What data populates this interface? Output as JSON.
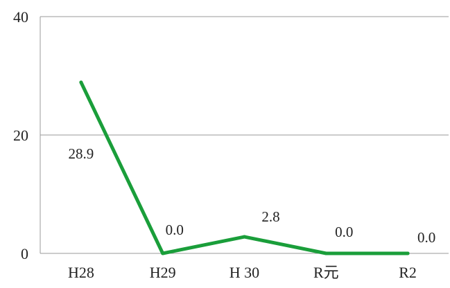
{
  "chart_data": {
    "type": "line",
    "categories": [
      "H28",
      "H29",
      "H 30",
      "R元",
      "R2"
    ],
    "series": [
      {
        "values": [
          28.9,
          0.0,
          2.8,
          0.0,
          0.0
        ],
        "color": "#1a9e3a"
      }
    ],
    "data_labels": [
      "28.9",
      "0.0",
      "2.8",
      "0.0",
      "0.0"
    ],
    "ylim": [
      0,
      40
    ],
    "yticks": [
      0,
      20,
      40
    ],
    "grid": true,
    "gridline_color": "#9a9a9a",
    "title": "",
    "xlabel": "",
    "ylabel": ""
  }
}
